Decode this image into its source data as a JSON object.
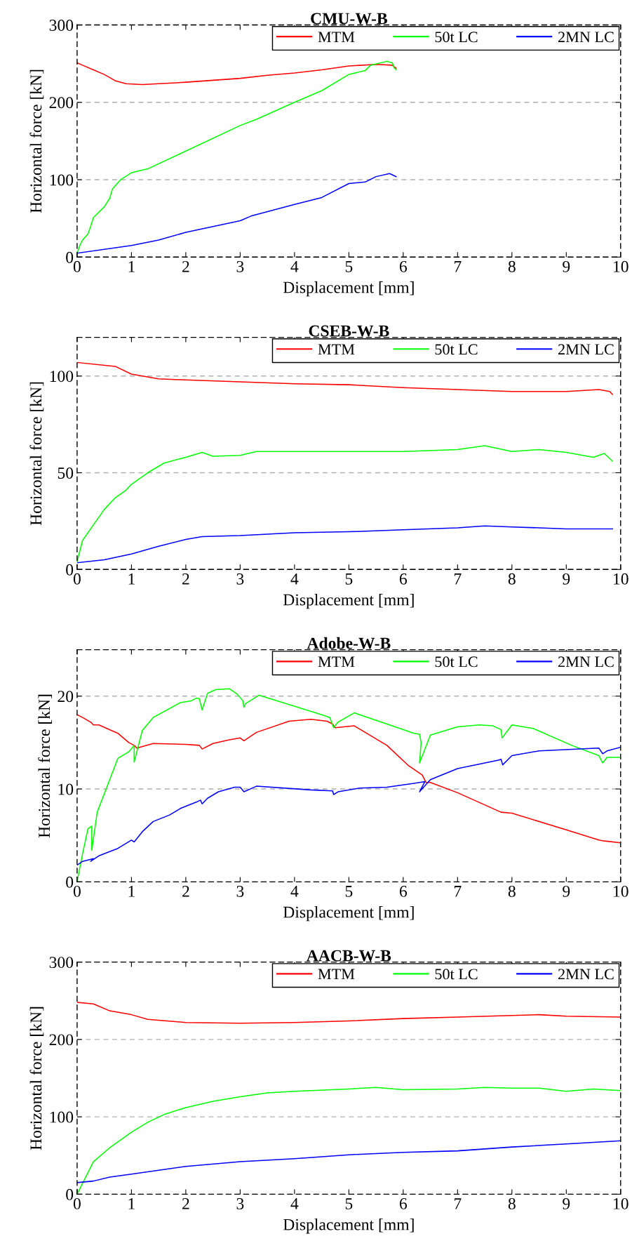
{
  "chart_data": [
    {
      "type": "line",
      "title": "CMU-W-B",
      "xlabel": "Displacement [mm]",
      "ylabel": "Horizontal force [kN]",
      "xlim": [
        0,
        10
      ],
      "xticks": [
        0,
        1,
        2,
        3,
        4,
        5,
        6,
        7,
        8,
        9,
        10
      ],
      "ylim": [
        0,
        300
      ],
      "yticks": [
        0,
        100,
        200,
        300
      ],
      "grid": "y",
      "legend": "top right",
      "series": [
        {
          "name": "MTM",
          "color": "#ff0000",
          "x": [
            0,
            0.1,
            0.3,
            0.5,
            0.7,
            0.9,
            1.2,
            1.5,
            2,
            3,
            3.5,
            4,
            4.5,
            5,
            5.5,
            5.8,
            5.87
          ],
          "values": [
            251,
            248,
            242,
            236,
            228,
            224,
            223,
            224,
            226,
            231,
            235,
            238,
            242,
            247,
            249,
            248,
            244
          ]
        },
        {
          "name": "50t LC",
          "color": "#00ff00",
          "x": [
            0,
            0.05,
            0.1,
            0.2,
            0.25,
            0.3,
            0.5,
            0.6,
            0.65,
            0.8,
            1.0,
            1.3,
            2.0,
            3.0,
            3.3,
            4.0,
            4.5,
            5.0,
            5.3,
            5.4,
            5.7,
            5.8,
            5.83,
            5.87
          ],
          "values": [
            5,
            15,
            22,
            30,
            40,
            51,
            65,
            76,
            88,
            100,
            109,
            114,
            137,
            170,
            178,
            200,
            215,
            236,
            241,
            248,
            253,
            251,
            245,
            242
          ]
        },
        {
          "name": "2MN LC",
          "color": "#0000ff",
          "x": [
            0,
            1,
            1.5,
            2,
            3,
            3.2,
            4,
            4.5,
            5,
            5.3,
            5.5,
            5.75,
            5.87
          ],
          "values": [
            5,
            15,
            22,
            32,
            47,
            53,
            68,
            77,
            95,
            97,
            104,
            108,
            104
          ]
        }
      ]
    },
    {
      "type": "line",
      "title": "CSEB-W-B",
      "xlabel": "Displacement [mm]",
      "ylabel": "Horizontal force [kN]",
      "xlim": [
        0,
        10
      ],
      "xticks": [
        0,
        1,
        2,
        3,
        4,
        5,
        6,
        7,
        8,
        9,
        10
      ],
      "ylim": [
        0,
        120
      ],
      "yticks": [
        0,
        50,
        100
      ],
      "grid": "y",
      "legend": "top right",
      "series": [
        {
          "name": "MTM",
          "color": "#ff0000",
          "x": [
            0,
            0.7,
            1,
            1.5,
            2,
            3,
            4,
            5,
            6,
            7,
            8,
            9,
            9.6,
            9.8,
            9.85
          ],
          "values": [
            107,
            105,
            101,
            98.5,
            98,
            97,
            96,
            95.5,
            94,
            93,
            92,
            92,
            93,
            92,
            90.5
          ]
        },
        {
          "name": "50t LC",
          "color": "#00ff00",
          "x": [
            0,
            0.1,
            0.3,
            0.5,
            0.7,
            0.9,
            1.0,
            1.3,
            1.6,
            2,
            2.3,
            2.5,
            3,
            3.3,
            4,
            5,
            6,
            7,
            7.5,
            8,
            8.5,
            9,
            9.5,
            9.7,
            9.85
          ],
          "values": [
            4,
            15,
            23,
            31,
            37,
            41,
            44,
            50,
            55,
            58,
            60.5,
            58.5,
            59,
            61,
            61,
            61,
            61,
            62,
            64,
            61,
            62,
            60.5,
            58,
            60,
            56
          ]
        },
        {
          "name": "2MN LC",
          "color": "#0000ff",
          "x": [
            0,
            0.5,
            1,
            1.5,
            2,
            2.3,
            3,
            4,
            5,
            6,
            7,
            7.5,
            8,
            9,
            9.85
          ],
          "values": [
            3.5,
            5,
            8,
            12,
            15.5,
            17,
            17.5,
            19,
            19.5,
            20.5,
            21.5,
            22.5,
            22,
            21,
            21
          ]
        }
      ]
    },
    {
      "type": "line",
      "title": "Adobe-W-B",
      "xlabel": "Displacement [mm]",
      "ylabel": "Horizontal force [kN]",
      "xlim": [
        0,
        10
      ],
      "xticks": [
        0,
        1,
        2,
        3,
        4,
        5,
        6,
        7,
        8,
        9,
        10
      ],
      "ylim": [
        0,
        25
      ],
      "yticks": [
        0,
        10,
        20
      ],
      "grid": "y",
      "legend": "top right",
      "series": [
        {
          "name": "MTM",
          "color": "#ff0000",
          "x": [
            0,
            0.1,
            0.25,
            0.3,
            0.4,
            0.75,
            0.95,
            1.05,
            1.1,
            1.4,
            2,
            2.25,
            2.3,
            2.5,
            2.8,
            3.0,
            3.07,
            3.3,
            3.9,
            4.3,
            4.6,
            4.7,
            4.75,
            5.1,
            5.7,
            6.1,
            6.35,
            6.42,
            6.5,
            7,
            7.8,
            8,
            9,
            9.6,
            9.7,
            10
          ],
          "values": [
            18,
            17.7,
            17.2,
            16.9,
            16.9,
            16,
            15,
            14.7,
            14.4,
            14.9,
            14.8,
            14.7,
            14.3,
            14.9,
            15.3,
            15.5,
            15.2,
            16.1,
            17.3,
            17.5,
            17.3,
            17.0,
            16.6,
            16.8,
            14.7,
            12.5,
            11.5,
            10.7,
            10.7,
            9.6,
            7.5,
            7.4,
            5.6,
            4.5,
            4.4,
            4.2
          ]
        },
        {
          "name": "50t LC",
          "color": "#00ff00",
          "x": [
            0,
            0.1,
            0.2,
            0.27,
            0.27,
            0.37,
            0.6,
            0.75,
            0.95,
            1.05,
            1.05,
            1.2,
            1.4,
            1.9,
            2.1,
            2.2,
            2.25,
            2.3,
            2.4,
            2.55,
            2.8,
            2.95,
            3.05,
            3.07,
            3.1,
            3.35,
            4.5,
            4.65,
            4.72,
            4.8,
            5.1,
            5.7,
            6.2,
            6.3,
            6.33,
            6.3,
            6.5,
            7,
            7.4,
            7.65,
            7.8,
            7.82,
            8.0,
            8.4,
            9.1,
            9.6,
            9.67,
            9.75,
            10
          ],
          "values": [
            0,
            3,
            5.7,
            6,
            3.4,
            7.5,
            11,
            13.3,
            14.0,
            14.7,
            12.9,
            16.3,
            17.7,
            19.3,
            19.5,
            19.8,
            19.7,
            18.5,
            20.3,
            20.7,
            20.8,
            20.2,
            19.5,
            18.8,
            19.2,
            20.1,
            18.0,
            17.7,
            16.6,
            17.2,
            18.2,
            17.0,
            16.0,
            15.9,
            15.0,
            12.8,
            15.8,
            16.7,
            16.9,
            16.8,
            16.4,
            15.5,
            16.9,
            16.5,
            14.7,
            13.6,
            12.8,
            13.4,
            13.4
          ]
        },
        {
          "name": "2MN LC",
          "color": "#0000ff",
          "x": [
            0,
            0.1,
            0.3,
            0.25,
            0.4,
            0.75,
            1,
            1.05,
            1.2,
            1.4,
            1.7,
            1.9,
            2.2,
            2.27,
            2.3,
            2.4,
            2.6,
            2.9,
            3.0,
            3.07,
            3.3,
            4.3,
            4.7,
            4.72,
            4.8,
            5.2,
            5.7,
            6.2,
            6.4,
            6.3,
            6.5,
            7,
            7.75,
            7.8,
            7.83,
            8.0,
            8.5,
            9.6,
            9.67,
            9.75,
            10
          ],
          "values": [
            1.8,
            2.2,
            2.5,
            2.2,
            2.8,
            3.6,
            4.5,
            4.3,
            5.4,
            6.5,
            7.2,
            7.9,
            8.6,
            8.8,
            8.4,
            9.0,
            9.7,
            10.2,
            10.2,
            9.7,
            10.3,
            9.9,
            9.8,
            9.4,
            9.7,
            10.1,
            10.2,
            10.6,
            10.8,
            9.7,
            11.0,
            12.2,
            13.1,
            13.2,
            12.6,
            13.6,
            14.1,
            14.4,
            13.8,
            14.1,
            14.5
          ]
        }
      ]
    },
    {
      "type": "line",
      "title": "AACB-W-B",
      "xlabel": "Displacement [mm]",
      "ylabel": "Horizontal force [kN]",
      "xlim": [
        0,
        10
      ],
      "xticks": [
        0,
        1,
        2,
        3,
        4,
        5,
        6,
        7,
        8,
        9,
        10
      ],
      "ylim": [
        0,
        300
      ],
      "yticks": [
        0,
        100,
        200,
        300
      ],
      "grid": "y",
      "legend": "top right",
      "series": [
        {
          "name": "MTM",
          "color": "#ff0000",
          "x": [
            0,
            0.3,
            0.6,
            1,
            1.3,
            2,
            3,
            4,
            5,
            6,
            7,
            8,
            8.5,
            9,
            10
          ],
          "values": [
            248,
            246,
            237,
            232,
            226,
            222,
            221,
            222,
            224,
            227,
            229,
            231,
            232,
            230,
            229
          ]
        },
        {
          "name": "50t LC",
          "color": "#00ff00",
          "x": [
            0,
            0.3,
            0.6,
            1,
            1.3,
            1.6,
            2,
            2.5,
            3,
            3.5,
            4,
            5,
            5.5,
            6,
            7,
            7.5,
            8,
            8.5,
            9,
            9.5,
            10
          ],
          "values": [
            0,
            42,
            60,
            80,
            93,
            103,
            112,
            120,
            126,
            131,
            133,
            136,
            138,
            135,
            136,
            138,
            137,
            137,
            133,
            136,
            134
          ]
        },
        {
          "name": "2MN LC",
          "color": "#0000ff",
          "x": [
            0,
            0.3,
            0.6,
            1,
            1.5,
            2,
            3,
            4,
            5,
            6,
            7,
            8,
            9,
            10
          ],
          "values": [
            15,
            17,
            22,
            26,
            31,
            36,
            42,
            46,
            51,
            54,
            56,
            61,
            65,
            69
          ]
        }
      ]
    }
  ]
}
